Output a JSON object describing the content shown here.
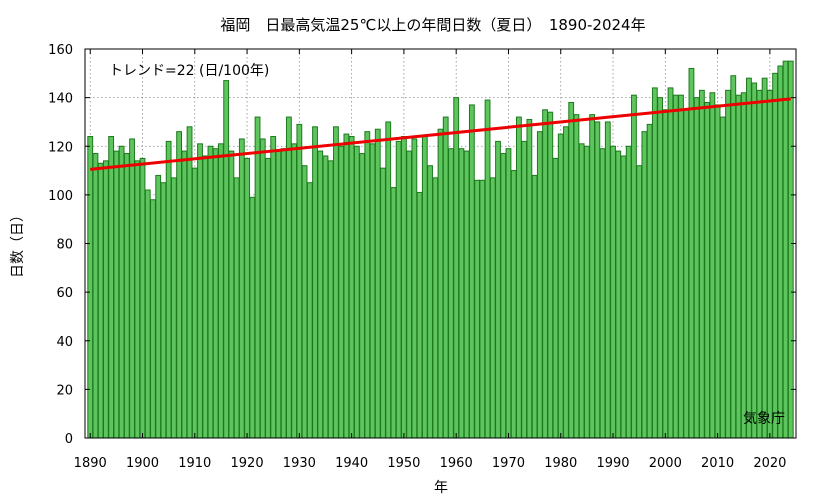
{
  "chart_data": {
    "type": "bar",
    "title": "福岡　日最高気温25℃以上の年間日数（夏日）　1890-2024年",
    "xlabel": "年",
    "ylabel": "日数（日）",
    "xlim": [
      1889,
      2025
    ],
    "ylim": [
      0,
      160
    ],
    "yticks": [
      0,
      20,
      40,
      60,
      80,
      100,
      120,
      140,
      160
    ],
    "xticks": [
      1890,
      1900,
      1910,
      1920,
      1930,
      1940,
      1950,
      1960,
      1970,
      1980,
      1990,
      2000,
      2010,
      2020
    ],
    "grid": true,
    "x": [
      1890,
      1891,
      1892,
      1893,
      1894,
      1895,
      1896,
      1897,
      1898,
      1899,
      1900,
      1901,
      1902,
      1903,
      1904,
      1905,
      1906,
      1907,
      1908,
      1909,
      1910,
      1911,
      1912,
      1913,
      1914,
      1915,
      1916,
      1917,
      1918,
      1919,
      1920,
      1921,
      1922,
      1923,
      1924,
      1925,
      1926,
      1927,
      1928,
      1929,
      1930,
      1931,
      1932,
      1933,
      1934,
      1935,
      1936,
      1937,
      1938,
      1939,
      1940,
      1941,
      1942,
      1943,
      1944,
      1945,
      1946,
      1947,
      1948,
      1949,
      1950,
      1951,
      1952,
      1953,
      1954,
      1955,
      1956,
      1957,
      1958,
      1959,
      1960,
      1961,
      1962,
      1963,
      1964,
      1965,
      1966,
      1967,
      1968,
      1969,
      1970,
      1971,
      1972,
      1973,
      1974,
      1975,
      1976,
      1977,
      1978,
      1979,
      1980,
      1981,
      1982,
      1983,
      1984,
      1985,
      1986,
      1987,
      1988,
      1989,
      1990,
      1991,
      1992,
      1993,
      1994,
      1995,
      1996,
      1997,
      1998,
      1999,
      2000,
      2001,
      2002,
      2003,
      2004,
      2005,
      2006,
      2007,
      2008,
      2009,
      2010,
      2011,
      2012,
      2013,
      2014,
      2015,
      2016,
      2017,
      2018,
      2019,
      2020,
      2021,
      2022,
      2023,
      2024
    ],
    "series": [
      {
        "values": [
          124,
          117,
          113,
          114,
          124,
          118,
          120,
          117,
          123,
          114,
          115,
          102,
          98,
          108,
          105,
          122,
          107,
          126,
          118,
          128,
          111,
          121,
          116,
          120,
          119,
          121,
          147,
          118,
          107,
          123,
          115,
          99,
          132,
          123,
          115,
          124,
          118,
          119,
          132,
          121,
          129,
          112,
          105,
          128,
          118,
          116,
          114,
          128,
          120,
          125,
          124,
          120,
          117,
          126,
          121,
          127,
          111,
          130,
          103,
          122,
          124,
          118,
          123,
          101,
          124,
          112,
          107,
          127,
          132,
          119,
          140,
          119,
          118,
          137,
          106,
          106,
          139,
          107,
          122,
          117,
          119,
          110,
          132,
          122,
          131,
          108,
          126,
          135,
          134,
          115,
          125,
          128,
          138,
          133,
          121,
          120,
          133,
          130,
          119,
          130,
          120,
          118,
          116,
          120,
          141,
          112,
          126,
          129,
          144,
          140,
          135,
          144,
          141,
          141,
          135,
          152,
          140,
          143,
          138,
          142,
          137,
          132,
          143,
          149,
          141,
          142,
          148,
          146,
          143,
          148,
          143,
          150,
          153,
          155,
          155
        ],
        "color": "#5ec45e",
        "border": "#1c7a1c"
      }
    ],
    "trend": {
      "label": "トレンド=22 (日/100年)",
      "start": [
        1890,
        110.5
      ],
      "end": [
        2024,
        139.5
      ],
      "color": "#ee0000"
    },
    "source": "気象庁"
  }
}
